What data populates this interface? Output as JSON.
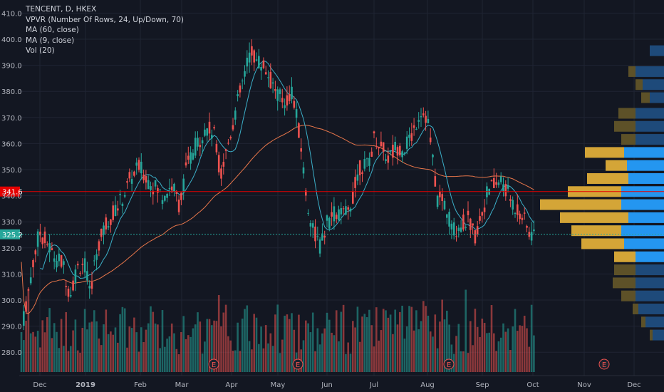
{
  "legend": {
    "symbol_line": "TENCENT, D, HKEX",
    "vpvr": "VPVR (Number Of Rows, 24, Up/Down, 70)",
    "ma60": "MA (60, close)",
    "ma9": "MA (9, close)",
    "vol": "Vol (20)"
  },
  "price_axis": {
    "ticks": [
      "410.0",
      "400.0",
      "390.0",
      "380.0",
      "370.0",
      "360.0",
      "350.0",
      "340.0",
      "330.0",
      "320.0",
      "310.0",
      "300.0",
      "290.0",
      "280.0"
    ],
    "tick_values": [
      410,
      400,
      390,
      380,
      370,
      360,
      350,
      340,
      330,
      320,
      310,
      300,
      290,
      280
    ],
    "range": [
      272,
      414
    ]
  },
  "time_axis": {
    "labels": [
      "Dec",
      "2019",
      "Feb",
      "Mar",
      "Apr",
      "May",
      "Jun",
      "Jul",
      "Aug",
      "Sep",
      "Oct",
      "Nov",
      "Dec"
    ]
  },
  "price_markers": [
    {
      "value": 341.6,
      "label": "341.6",
      "color": "#e50000"
    },
    {
      "value": 325.2,
      "label": "325.2",
      "color": "#26a69a"
    }
  ],
  "earnings_markers": [
    "E",
    "E",
    "E",
    "E"
  ],
  "colors": {
    "background": "#131722",
    "grid": "#1f2433",
    "up": "#26a69a",
    "down": "#ef5350",
    "ma60": "#e8764a",
    "ma9": "#3cb0c9",
    "vpvr_up_poc": "#2496f0",
    "vpvr_down_poc": "#d4a537",
    "vpvr_up": "#1e4a7a",
    "vpvr_down": "#5d5128",
    "axis_text": "#b2b5be"
  },
  "icons": {
    "earnings": "earnings-e-icon"
  }
}
